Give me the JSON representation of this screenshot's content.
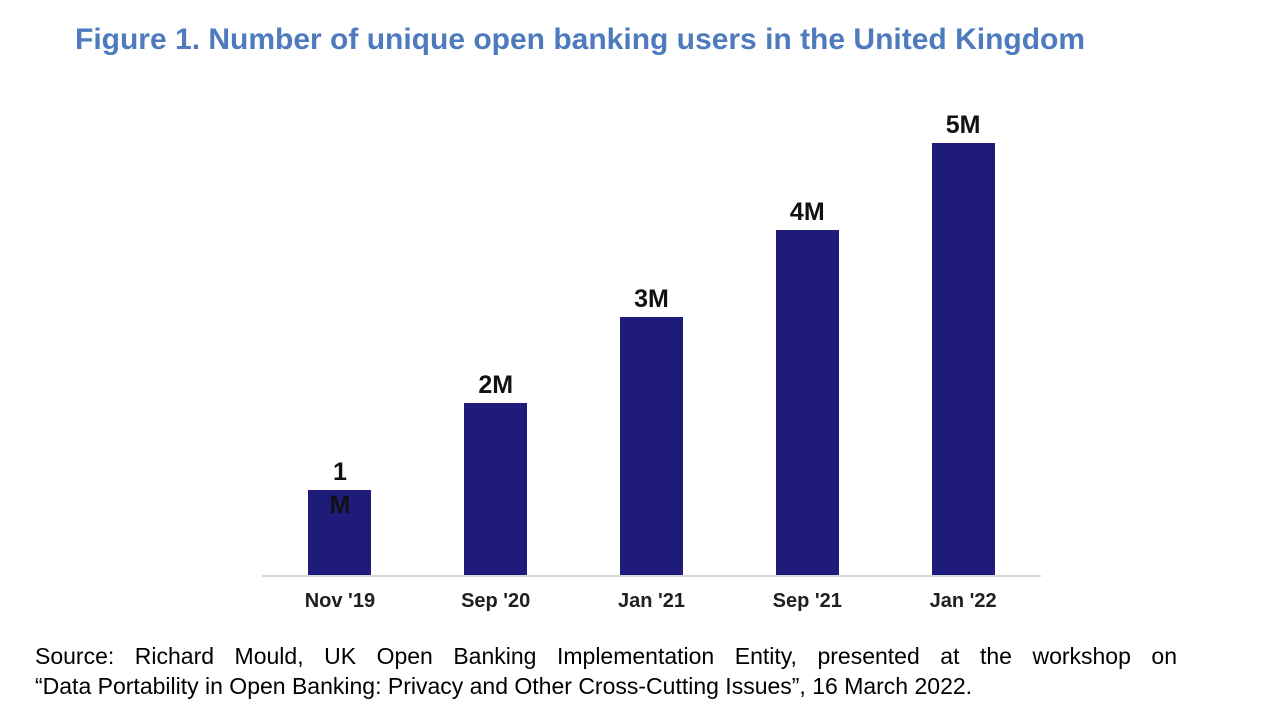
{
  "title": "Figure 1. Number of unique open banking users in the United Kingdom",
  "title_color": "#4E7ABE",
  "source": {
    "line1": "Source: Richard Mould, UK Open Banking Implementation Entity, presented at the workshop on",
    "line2": "“Data Portability in Open Banking: Privacy and Other Cross-Cutting Issues”, 16 March 2022."
  },
  "chart_data": {
    "type": "bar",
    "title": "Figure 1. Number of unique open banking users in the United Kingdom",
    "categories": [
      "Nov '19",
      "Sep '20",
      "Jan '21",
      "Sep '21",
      "Jan '22"
    ],
    "values": [
      1,
      2,
      3,
      4,
      5
    ],
    "value_labels": [
      "1\nM",
      "2M",
      "3M",
      "4M",
      "5M"
    ],
    "unit": "millions of unique users",
    "xlabel": "",
    "ylabel": "",
    "ylim": [
      0,
      5
    ],
    "grid": false,
    "legend": false,
    "y_axis_visible": false,
    "bar_color": "#1E1B7B",
    "value_label_color": "#111111",
    "tick_label_color": "#1f1f1f",
    "axis_line_color": "#D9D9D9"
  }
}
